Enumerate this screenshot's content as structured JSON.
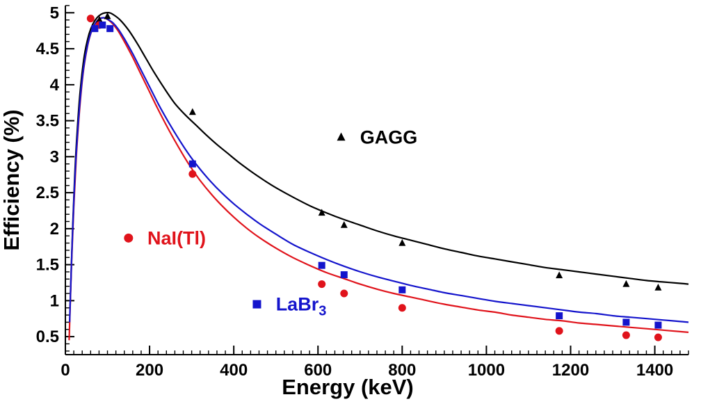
{
  "chart_data": {
    "type": "scatter",
    "title": "",
    "xlabel": "Energy (keV)",
    "ylabel": "Efficiency (%)",
    "xlim": [
      0,
      1480
    ],
    "ylim": [
      0.25,
      5.1
    ],
    "grid": false,
    "background": "#ffffff",
    "x_major_ticks": [
      0,
      200,
      400,
      600,
      800,
      1000,
      1200,
      1400
    ],
    "x_minor_step": 20,
    "y_major_ticks": [
      0.5,
      1,
      1.5,
      2,
      2.5,
      3,
      3.5,
      4,
      4.5,
      5
    ],
    "y_minor_step": 0.1,
    "series": [
      {
        "name": "GAGG",
        "color": "#000000",
        "marker": "triangle",
        "points": [
          [
            81,
            4.9
          ],
          [
            100,
            4.95
          ],
          [
            302,
            3.62
          ],
          [
            609,
            2.22
          ],
          [
            662,
            2.05
          ],
          [
            800,
            1.8
          ],
          [
            1173,
            1.35
          ],
          [
            1332,
            1.23
          ],
          [
            1408,
            1.18
          ]
        ],
        "curve": [
          [
            11,
            0.9
          ],
          [
            16,
            1.8
          ],
          [
            22,
            2.7
          ],
          [
            28,
            3.35
          ],
          [
            35,
            3.9
          ],
          [
            45,
            4.4
          ],
          [
            55,
            4.68
          ],
          [
            65,
            4.84
          ],
          [
            75,
            4.93
          ],
          [
            85,
            4.98
          ],
          [
            95,
            5.0
          ],
          [
            105,
            5.0
          ],
          [
            115,
            4.97
          ],
          [
            130,
            4.9
          ],
          [
            150,
            4.76
          ],
          [
            170,
            4.58
          ],
          [
            190,
            4.38
          ],
          [
            210,
            4.18
          ],
          [
            235,
            3.95
          ],
          [
            260,
            3.74
          ],
          [
            285,
            3.58
          ],
          [
            310,
            3.44
          ],
          [
            335,
            3.3
          ],
          [
            360,
            3.17
          ],
          [
            385,
            3.05
          ],
          [
            410,
            2.93
          ],
          [
            440,
            2.8
          ],
          [
            470,
            2.68
          ],
          [
            500,
            2.57
          ],
          [
            540,
            2.44
          ],
          [
            580,
            2.32
          ],
          [
            620,
            2.22
          ],
          [
            660,
            2.13
          ],
          [
            700,
            2.05
          ],
          [
            740,
            1.97
          ],
          [
            780,
            1.9
          ],
          [
            820,
            1.84
          ],
          [
            860,
            1.78
          ],
          [
            900,
            1.72
          ],
          [
            940,
            1.67
          ],
          [
            980,
            1.62
          ],
          [
            1020,
            1.58
          ],
          [
            1060,
            1.54
          ],
          [
            1100,
            1.5
          ],
          [
            1140,
            1.46
          ],
          [
            1180,
            1.43
          ],
          [
            1220,
            1.4
          ],
          [
            1260,
            1.37
          ],
          [
            1300,
            1.34
          ],
          [
            1340,
            1.31
          ],
          [
            1380,
            1.28
          ],
          [
            1420,
            1.26
          ],
          [
            1460,
            1.24
          ],
          [
            1480,
            1.23
          ]
        ],
        "legend": {
          "x": 655,
          "y": 3.27,
          "label": "GAGG",
          "label_sub": "",
          "label_x": 700
        }
      },
      {
        "name": "NaI(Tl)",
        "color": "#e0131b",
        "marker": "circle",
        "points": [
          [
            60,
            4.92
          ],
          [
            81,
            4.83
          ],
          [
            302,
            2.76
          ],
          [
            609,
            1.23
          ],
          [
            662,
            1.1
          ],
          [
            800,
            0.9
          ],
          [
            1173,
            0.58
          ],
          [
            1332,
            0.52
          ],
          [
            1408,
            0.49
          ]
        ],
        "curve": [
          [
            9,
            0.45
          ],
          [
            14,
            1.4
          ],
          [
            20,
            2.3
          ],
          [
            26,
            3.0
          ],
          [
            33,
            3.6
          ],
          [
            42,
            4.15
          ],
          [
            52,
            4.52
          ],
          [
            62,
            4.74
          ],
          [
            72,
            4.86
          ],
          [
            82,
            4.92
          ],
          [
            92,
            4.93
          ],
          [
            102,
            4.9
          ],
          [
            112,
            4.85
          ],
          [
            125,
            4.75
          ],
          [
            140,
            4.6
          ],
          [
            160,
            4.38
          ],
          [
            180,
            4.14
          ],
          [
            200,
            3.9
          ],
          [
            220,
            3.66
          ],
          [
            245,
            3.38
          ],
          [
            270,
            3.12
          ],
          [
            295,
            2.88
          ],
          [
            320,
            2.67
          ],
          [
            345,
            2.49
          ],
          [
            370,
            2.33
          ],
          [
            400,
            2.16
          ],
          [
            430,
            2.01
          ],
          [
            460,
            1.88
          ],
          [
            500,
            1.73
          ],
          [
            540,
            1.6
          ],
          [
            580,
            1.49
          ],
          [
            620,
            1.39
          ],
          [
            660,
            1.31
          ],
          [
            700,
            1.23
          ],
          [
            740,
            1.16
          ],
          [
            780,
            1.1
          ],
          [
            820,
            1.05
          ],
          [
            860,
            1.0
          ],
          [
            900,
            0.95
          ],
          [
            940,
            0.91
          ],
          [
            980,
            0.87
          ],
          [
            1020,
            0.84
          ],
          [
            1060,
            0.8
          ],
          [
            1100,
            0.77
          ],
          [
            1140,
            0.74
          ],
          [
            1180,
            0.72
          ],
          [
            1220,
            0.69
          ],
          [
            1260,
            0.67
          ],
          [
            1300,
            0.65
          ],
          [
            1340,
            0.63
          ],
          [
            1380,
            0.61
          ],
          [
            1420,
            0.59
          ],
          [
            1460,
            0.57
          ],
          [
            1480,
            0.56
          ]
        ],
        "legend": {
          "x": 150,
          "y": 1.87,
          "label": "NaI(Tl)",
          "label_sub": "",
          "label_x": 195
        }
      },
      {
        "name": "LaBr3",
        "color": "#1414cc",
        "marker": "square",
        "points": [
          [
            70,
            4.78
          ],
          [
            88,
            4.83
          ],
          [
            106,
            4.78
          ],
          [
            302,
            2.9
          ],
          [
            609,
            1.49
          ],
          [
            662,
            1.36
          ],
          [
            800,
            1.15
          ],
          [
            1173,
            0.79
          ],
          [
            1332,
            0.7
          ],
          [
            1408,
            0.66
          ]
        ],
        "curve": [
          [
            10,
            0.7
          ],
          [
            15,
            1.6
          ],
          [
            21,
            2.5
          ],
          [
            27,
            3.15
          ],
          [
            34,
            3.72
          ],
          [
            43,
            4.22
          ],
          [
            53,
            4.56
          ],
          [
            63,
            4.76
          ],
          [
            73,
            4.87
          ],
          [
            83,
            4.92
          ],
          [
            93,
            4.93
          ],
          [
            103,
            4.9
          ],
          [
            113,
            4.86
          ],
          [
            126,
            4.77
          ],
          [
            141,
            4.63
          ],
          [
            161,
            4.42
          ],
          [
            181,
            4.19
          ],
          [
            201,
            3.96
          ],
          [
            221,
            3.73
          ],
          [
            246,
            3.47
          ],
          [
            271,
            3.23
          ],
          [
            296,
            3.01
          ],
          [
            321,
            2.82
          ],
          [
            346,
            2.65
          ],
          [
            371,
            2.5
          ],
          [
            401,
            2.34
          ],
          [
            431,
            2.2
          ],
          [
            461,
            2.07
          ],
          [
            501,
            1.92
          ],
          [
            541,
            1.78
          ],
          [
            581,
            1.67
          ],
          [
            621,
            1.57
          ],
          [
            661,
            1.48
          ],
          [
            701,
            1.4
          ],
          [
            741,
            1.33
          ],
          [
            781,
            1.27
          ],
          [
            821,
            1.21
          ],
          [
            861,
            1.16
          ],
          [
            901,
            1.11
          ],
          [
            941,
            1.07
          ],
          [
            981,
            1.03
          ],
          [
            1021,
            0.99
          ],
          [
            1061,
            0.96
          ],
          [
            1101,
            0.93
          ],
          [
            1141,
            0.9
          ],
          [
            1181,
            0.87
          ],
          [
            1221,
            0.84
          ],
          [
            1261,
            0.82
          ],
          [
            1301,
            0.79
          ],
          [
            1341,
            0.77
          ],
          [
            1381,
            0.75
          ],
          [
            1421,
            0.73
          ],
          [
            1461,
            0.71
          ],
          [
            1480,
            0.7
          ]
        ],
        "legend": {
          "x": 455,
          "y": 0.95,
          "label": "LaBr",
          "label_sub": "3",
          "label_x": 500
        }
      }
    ]
  }
}
